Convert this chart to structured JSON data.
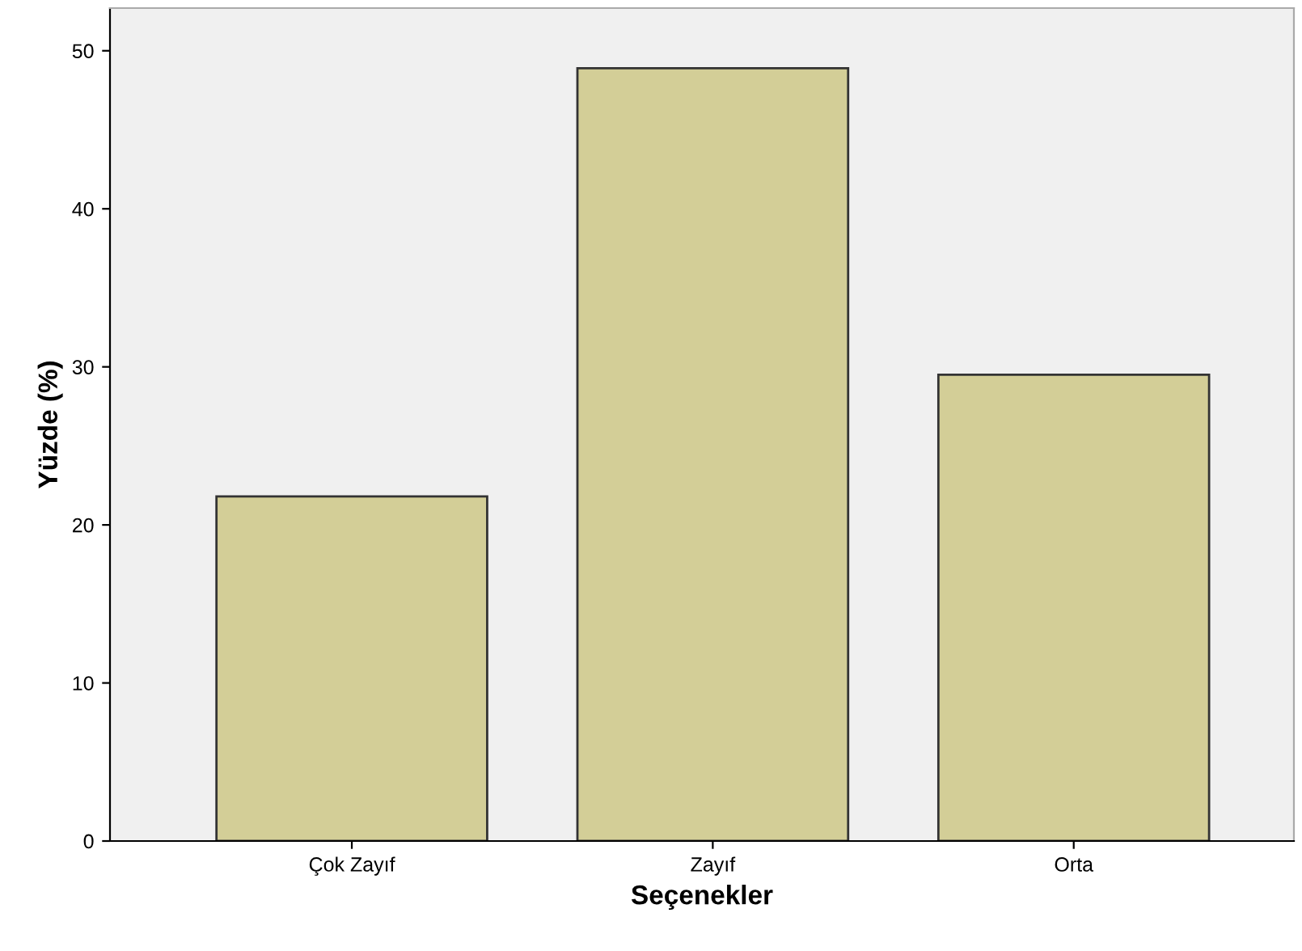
{
  "chart_data": {
    "type": "bar",
    "xlabel": "Seçenekler",
    "ylabel": "Yüzde (%)",
    "categories": [
      "Çok Zayıf",
      "Zayıf",
      "Orta"
    ],
    "values": [
      21.8,
      48.9,
      29.5
    ],
    "color": "#d3ce97",
    "ylim": [
      0,
      52.7
    ],
    "yticks": [
      0,
      10,
      20,
      30,
      40,
      50
    ],
    "grid": false,
    "legend": false
  }
}
